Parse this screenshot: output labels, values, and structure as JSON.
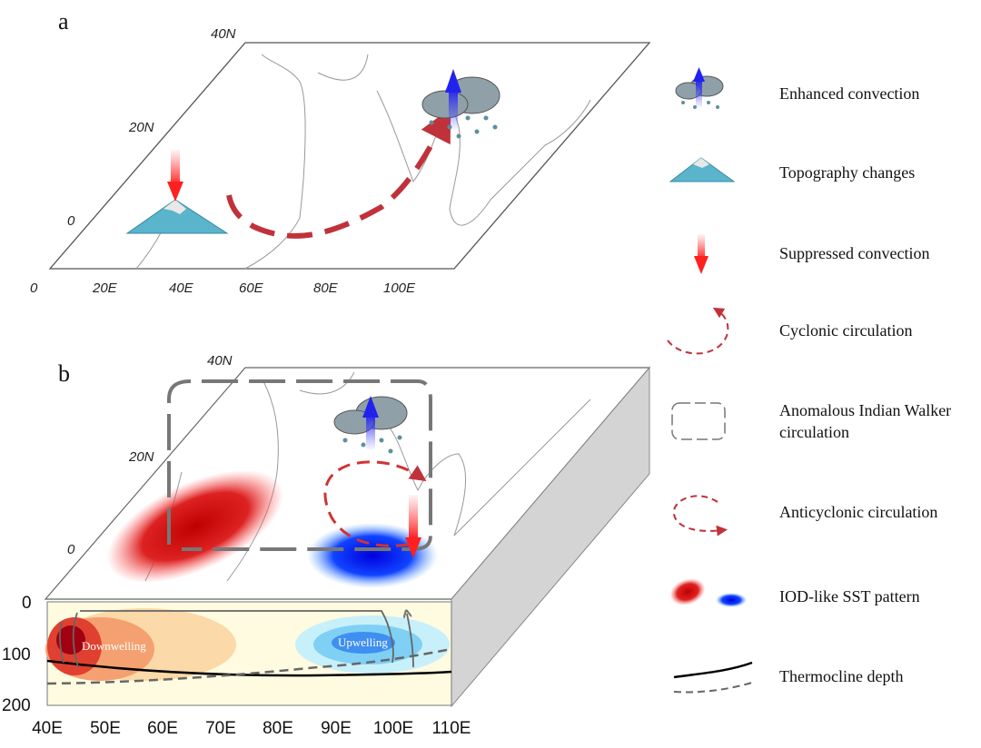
{
  "panel_a": {
    "label": "a",
    "lat_labels": [
      "40N",
      "20N",
      "0"
    ],
    "lon_labels": [
      "0",
      "20E",
      "40E",
      "60E",
      "80E",
      "100E"
    ]
  },
  "panel_b": {
    "label": "b",
    "lat_labels": [
      "40N",
      "20N",
      "0"
    ],
    "depth_labels": [
      "0",
      "100",
      "200"
    ],
    "lon_labels": [
      "40E",
      "50E",
      "60E",
      "70E",
      "80E",
      "90E",
      "100E",
      "110E"
    ],
    "annotations": {
      "downwelling": "Downwelling",
      "upwelling": "Upwelling"
    }
  },
  "legend": {
    "items": [
      {
        "icon": "rain-cloud-up-arrow-icon",
        "label": "Enhanced convection"
      },
      {
        "icon": "mountain-icon",
        "label": "Topography changes"
      },
      {
        "icon": "red-down-arrow-icon",
        "label": "Suppressed convection"
      },
      {
        "icon": "cyclonic-arrow-icon",
        "label": "Cyclonic circulation"
      },
      {
        "icon": "walker-loop-icon",
        "label": "Anomalous Indian Walker circulation"
      },
      {
        "icon": "anticyclonic-arrow-icon",
        "label": "Anticyclonic circulation"
      },
      {
        "icon": "sst-blobs-icon",
        "label": "IOD-like SST pattern"
      },
      {
        "icon": "thermocline-lines-icon",
        "label": "Thermocline depth"
      }
    ]
  },
  "colors": {
    "warm": "#cc1111",
    "cool": "#0a2bdc",
    "arrow": "#c0323a",
    "walker": "#777777"
  }
}
